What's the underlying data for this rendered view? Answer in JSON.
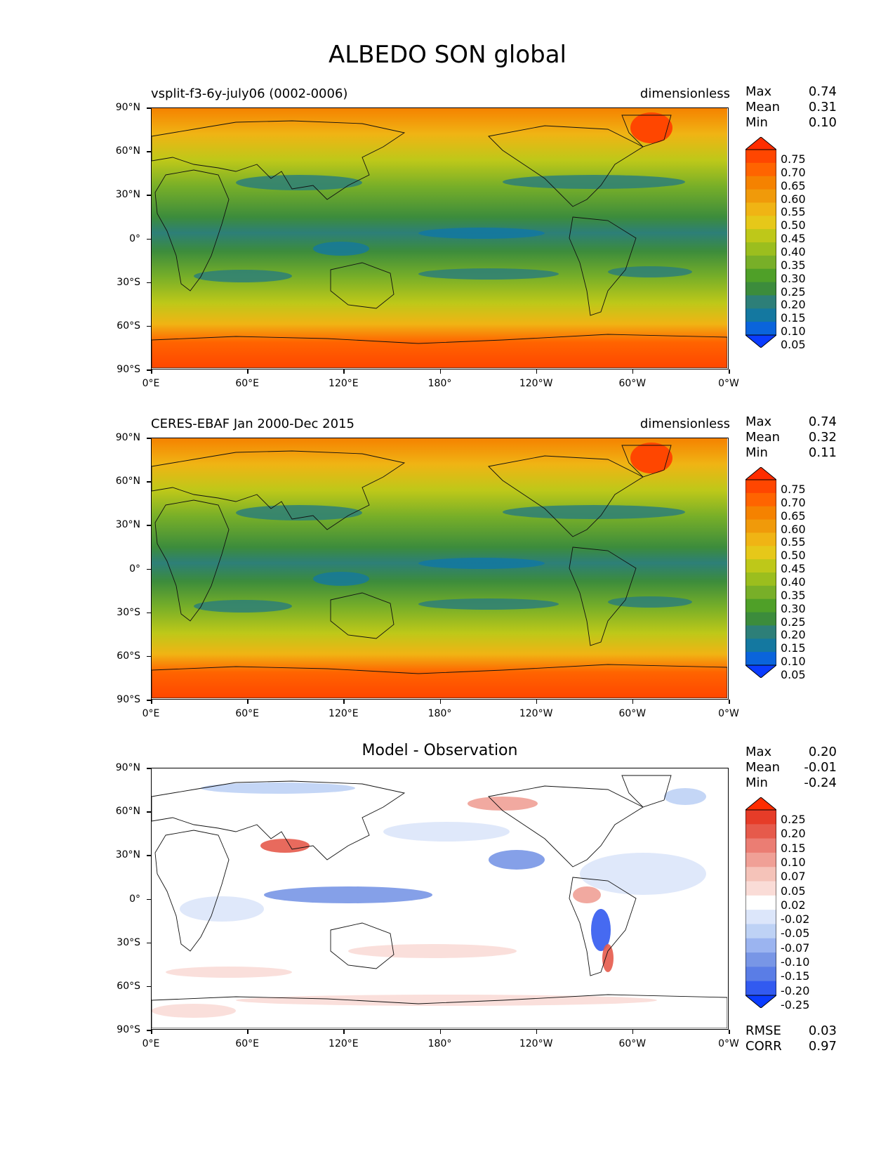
{
  "title": "ALBEDO SON global",
  "axes": {
    "lat_ticks": [
      "90°N",
      "60°N",
      "30°N",
      "0°",
      "30°S",
      "60°S",
      "90°S"
    ],
    "lon_ticks": [
      "0°E",
      "60°E",
      "120°E",
      "180°",
      "120°W",
      "60°W",
      "0°W"
    ]
  },
  "colors": {
    "seq": [
      "#0a3cff",
      "#0a64dc",
      "#1478a0",
      "#2d7f78",
      "#3c8c3c",
      "#4fa028",
      "#78af28",
      "#9bbe1e",
      "#bec819",
      "#e6c819",
      "#f0b414",
      "#f09a0a",
      "#f58200",
      "#ff6400",
      "#ff4600",
      "#ff2d00"
    ],
    "div": [
      "#0a3cff",
      "#325af0",
      "#5a7de6",
      "#7896e6",
      "#9bb4f0",
      "#bed2f5",
      "#dce6fa",
      "#ffffff",
      "#ffffff",
      "#fadcd7",
      "#f5c3b9",
      "#f0a096",
      "#eb7d73",
      "#e65a4b",
      "#e63c28",
      "#ff2d00"
    ]
  },
  "panels": [
    {
      "id": "model",
      "left_title": "vsplit-f3-6y-july06 (0002-0006)",
      "right_title": "dimensionless",
      "center_title": "",
      "stats": [
        {
          "label": "Max",
          "value": "0.74"
        },
        {
          "label": "Mean",
          "value": "0.31"
        },
        {
          "label": "Min",
          "value": "0.10"
        }
      ],
      "colorbar": [
        "0.75",
        "0.70",
        "0.65",
        "0.60",
        "0.55",
        "0.50",
        "0.45",
        "0.40",
        "0.35",
        "0.30",
        "0.25",
        "0.20",
        "0.15",
        "0.10",
        "0.05"
      ],
      "palette": "seq",
      "extra_stats": []
    },
    {
      "id": "obs",
      "left_title": "CERES-EBAF Jan 2000-Dec 2015",
      "right_title": "dimensionless",
      "center_title": "",
      "stats": [
        {
          "label": "Max",
          "value": "0.74"
        },
        {
          "label": "Mean",
          "value": "0.32"
        },
        {
          "label": "Min",
          "value": "0.11"
        }
      ],
      "colorbar": [
        "0.75",
        "0.70",
        "0.65",
        "0.60",
        "0.55",
        "0.50",
        "0.45",
        "0.40",
        "0.35",
        "0.30",
        "0.25",
        "0.20",
        "0.15",
        "0.10",
        "0.05"
      ],
      "palette": "seq",
      "extra_stats": []
    },
    {
      "id": "diff",
      "left_title": "",
      "right_title": "",
      "center_title": "Model - Observation",
      "stats": [
        {
          "label": "Max",
          "value": "0.20"
        },
        {
          "label": "Mean",
          "value": "-0.01"
        },
        {
          "label": "Min",
          "value": "-0.24"
        }
      ],
      "colorbar": [
        "0.25",
        "0.20",
        "0.15",
        "0.10",
        "0.07",
        "0.05",
        "0.02",
        "-0.02",
        "-0.05",
        "-0.07",
        "-0.10",
        "-0.15",
        "-0.20",
        "-0.25"
      ],
      "palette": "div",
      "extra_stats": [
        {
          "label": "RMSE",
          "value": "0.03"
        },
        {
          "label": "CORR",
          "value": "0.97"
        }
      ]
    }
  ]
}
